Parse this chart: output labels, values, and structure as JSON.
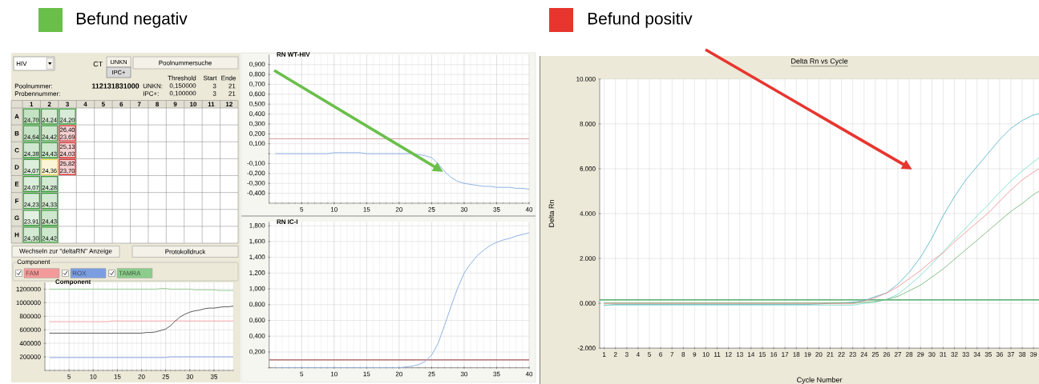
{
  "chart_data": [
    {
      "type": "heatmap",
      "annotations": [
        "HIV",
        "CT",
        "UNKN",
        "IPC+",
        "Poolnummersuche",
        "Threshold",
        "Start",
        "Ende",
        "Poolnummer:",
        "112131831000",
        "Probennummer:",
        "UNKN:",
        "0,150000",
        "3",
        "21",
        "IPC+:",
        "0,100000",
        "3",
        "21",
        "Wechseln zur \"deltaRN\" Anzeige",
        "Protokolldruck"
      ],
      "categories": [
        "1",
        "2",
        "3",
        "4",
        "5",
        "6",
        "7",
        "8",
        "9",
        "10",
        "11",
        "12"
      ],
      "y_categories": [
        "A",
        "B",
        "C",
        "D",
        "E",
        "F",
        "G",
        "H"
      ],
      "cells": [
        [
          24.7,
          24.24,
          24.2,
          null,
          null,
          null,
          null,
          null,
          null,
          null,
          null,
          null
        ],
        [
          24.64,
          24.42,
          null,
          null,
          null,
          null,
          null,
          null,
          null,
          null,
          null,
          null
        ],
        [
          24.38,
          24.43,
          null,
          null,
          null,
          null,
          null,
          null,
          null,
          null,
          null,
          null
        ],
        [
          24.07,
          24.36,
          null,
          null,
          null,
          null,
          null,
          null,
          null,
          null,
          null,
          null
        ],
        [
          24.07,
          24.28,
          null,
          null,
          null,
          null,
          null,
          null,
          null,
          null,
          null,
          null
        ],
        [
          24.23,
          24.33,
          null,
          null,
          null,
          null,
          null,
          null,
          null,
          null,
          null,
          null
        ],
        [
          23.91,
          24.43,
          null,
          null,
          null,
          null,
          null,
          null,
          null,
          null,
          null,
          null
        ],
        [
          24.3,
          24.42,
          null,
          null,
          null,
          null,
          null,
          null,
          null,
          null,
          null,
          null
        ]
      ],
      "cell_labels": [
        [
          "24,70",
          "24,24",
          "24,20",
          null,
          null,
          null,
          null,
          null,
          null,
          null,
          null,
          null
        ],
        [
          "24,64",
          "24,42",
          "26,40 23,69",
          null,
          null,
          null,
          null,
          null,
          null,
          null,
          null,
          null
        ],
        [
          "24,38",
          "24,43",
          "25,13 24,03",
          null,
          null,
          null,
          null,
          null,
          null,
          null,
          null,
          null
        ],
        [
          "24,07",
          "24,36",
          "25,82 23,70",
          null,
          null,
          null,
          null,
          null,
          null,
          null,
          null,
          null
        ],
        [
          "24,07",
          "24,28",
          null,
          null,
          null,
          null,
          null,
          null,
          null,
          null,
          null,
          null
        ],
        [
          "24,23",
          "24,33",
          null,
          null,
          null,
          null,
          null,
          null,
          null,
          null,
          null,
          null
        ],
        [
          "23,91",
          "24,43",
          null,
          null,
          null,
          null,
          null,
          null,
          null,
          null,
          null,
          null
        ],
        [
          "24,30",
          "24,42",
          null,
          null,
          null,
          null,
          null,
          null,
          null,
          null,
          null,
          null
        ]
      ],
      "colors": [
        [
          "#3a9a3a",
          "#3a9a3a",
          "#3a9a3a",
          null,
          null,
          null,
          null,
          null,
          null,
          null,
          null,
          null
        ],
        [
          "#3a9a3a",
          "#3a9a3a",
          "#d83030",
          null,
          null,
          null,
          null,
          null,
          null,
          null,
          null,
          null
        ],
        [
          "#3a9a3a",
          "#3a9a3a",
          "#d83030",
          null,
          null,
          null,
          null,
          null,
          null,
          null,
          null,
          null
        ],
        [
          "#3a9a3a",
          "#e8d850",
          "#d83030",
          null,
          null,
          null,
          null,
          null,
          null,
          null,
          null,
          null
        ],
        [
          "#3a9a3a",
          "#3a9a3a",
          null,
          null,
          null,
          null,
          null,
          null,
          null,
          null,
          null,
          null
        ],
        [
          "#3a9a3a",
          "#3a9a3a",
          null,
          null,
          null,
          null,
          null,
          null,
          null,
          null,
          null,
          null
        ],
        [
          "#3a9a3a",
          "#3a9a3a",
          null,
          null,
          null,
          null,
          null,
          null,
          null,
          null,
          null,
          null
        ],
        [
          "#3a9a3a",
          "#3a9a3a",
          null,
          null,
          null,
          null,
          null,
          null,
          null,
          null,
          null,
          null
        ]
      ]
    },
    {
      "type": "line",
      "title": "Component",
      "legend_title": "Component",
      "x": [
        1,
        2,
        3,
        4,
        5,
        6,
        7,
        8,
        9,
        10,
        11,
        12,
        13,
        14,
        15,
        16,
        17,
        18,
        19,
        20,
        21,
        22,
        23,
        24,
        25,
        26,
        27,
        28,
        29,
        30,
        31,
        32,
        33,
        34,
        35,
        36,
        37,
        38,
        39
      ],
      "series": [
        {
          "name": "FAM",
          "color": "#f29a9a",
          "values": [
            720000,
            720000,
            720000,
            720000,
            720000,
            720000,
            720000,
            720000,
            720000,
            720000,
            720000,
            720000,
            720000,
            730000,
            730000,
            730000,
            730000,
            730000,
            730000,
            730000,
            730000,
            730000,
            730000,
            730000,
            730000,
            730000,
            730000,
            730000,
            730000,
            730000,
            730000,
            730000,
            730000,
            730000,
            730000,
            730000,
            730000,
            730000,
            730000
          ]
        },
        {
          "name": "ROX",
          "color": "#7c9ee0",
          "values": [
            190000,
            190000,
            190000,
            190000,
            190000,
            190000,
            190000,
            190000,
            190000,
            190000,
            190000,
            190000,
            190000,
            190000,
            190000,
            190000,
            190000,
            190000,
            190000,
            190000,
            190000,
            190000,
            190000,
            190000,
            190000,
            200000,
            200000,
            200000,
            200000,
            200000,
            200000,
            200000,
            200000,
            200000,
            200000,
            200000,
            200000,
            200000,
            200000
          ]
        },
        {
          "name": "TAMRA",
          "color": "#8ccc8c",
          "values": [
            1200000,
            1200000,
            1200000,
            1200000,
            1200000,
            1200000,
            1200000,
            1200000,
            1200000,
            1200000,
            1200000,
            1200000,
            1200000,
            1200000,
            1200000,
            1200000,
            1200000,
            1200000,
            1200000,
            1200000,
            1200000,
            1200000,
            1200000,
            1210000,
            1210000,
            1200000,
            1200000,
            1200000,
            1200000,
            1200000,
            1190000,
            1190000,
            1190000,
            1190000,
            1190000,
            1180000,
            1180000,
            1180000,
            1180000
          ]
        },
        {
          "color": "#4a4a4a",
          "values": [
            550000,
            550000,
            550000,
            550000,
            550000,
            550000,
            550000,
            550000,
            550000,
            550000,
            550000,
            550000,
            550000,
            550000,
            550000,
            550000,
            550000,
            550000,
            550000,
            550000,
            560000,
            560000,
            570000,
            590000,
            610000,
            660000,
            730000,
            790000,
            830000,
            860000,
            880000,
            890000,
            910000,
            920000,
            920000,
            930000,
            940000,
            940000,
            950000
          ]
        }
      ],
      "xlim": [
        0,
        39
      ],
      "ylim": [
        0,
        1300000
      ],
      "xticks": [
        5,
        10,
        15,
        20,
        25,
        30,
        35
      ],
      "yticks": [
        200000,
        400000,
        600000,
        800000,
        1000000,
        1200000
      ],
      "grid": true,
      "legend": "top"
    },
    {
      "type": "line",
      "title": "RN WT-HIV",
      "x": [
        1,
        2,
        3,
        4,
        5,
        6,
        7,
        8,
        9,
        10,
        11,
        12,
        13,
        14,
        15,
        16,
        17,
        18,
        19,
        20,
        21,
        22,
        23,
        24,
        25,
        26,
        27,
        28,
        29,
        30,
        31,
        32,
        33,
        34,
        35,
        36,
        37,
        38,
        39,
        40
      ],
      "series": [
        {
          "color": "#8fb2e6",
          "values": [
            0,
            0,
            0,
            0,
            0,
            0,
            0,
            0,
            0,
            0.01,
            0.01,
            0.01,
            0.01,
            0.01,
            0,
            0,
            0,
            0,
            0,
            0,
            0,
            0,
            -0.01,
            -0.02,
            -0.04,
            -0.1,
            -0.18,
            -0.24,
            -0.28,
            -0.3,
            -0.31,
            -0.32,
            -0.33,
            -0.33,
            -0.34,
            -0.34,
            -0.34,
            -0.35,
            -0.35,
            -0.36
          ]
        }
      ],
      "xlim": [
        0,
        40
      ],
      "ylim": [
        -0.5,
        1.0
      ],
      "xticks": [
        5,
        10,
        15,
        20,
        25,
        30,
        35,
        40
      ],
      "yticks": [
        {
          "value": -0.4,
          "label": "-0,400"
        },
        {
          "value": -0.3,
          "label": "-0,300"
        },
        {
          "value": -0.2,
          "label": "-0,200"
        },
        {
          "value": -0.1,
          "label": "-0,100"
        },
        {
          "value": 0,
          "label": null
        },
        {
          "value": 0.1,
          "label": "0,100"
        },
        {
          "value": 0.2,
          "label": "0,200"
        },
        {
          "value": 0.3,
          "label": "0,300"
        },
        {
          "value": 0.4,
          "label": "0,400"
        },
        {
          "value": 0.5,
          "label": "0,500"
        },
        {
          "value": 0.6,
          "label": "0,600"
        },
        {
          "value": 0.7,
          "label": "0,700"
        },
        {
          "value": 0.8,
          "label": "0,800"
        },
        {
          "value": 0.9,
          "label": "0,900"
        }
      ],
      "grid": true,
      "ref_lines": [
        {
          "axis": "y",
          "value": 0.15,
          "color": "#d8a0a0"
        }
      ],
      "annotations": [
        "Befund negativ"
      ]
    },
    {
      "type": "line",
      "title": "RN IC-I",
      "x": [
        1,
        2,
        3,
        4,
        5,
        6,
        7,
        8,
        9,
        10,
        11,
        12,
        13,
        14,
        15,
        16,
        17,
        18,
        19,
        20,
        21,
        22,
        23,
        24,
        25,
        26,
        27,
        28,
        29,
        30,
        31,
        32,
        33,
        34,
        35,
        36,
        37,
        38,
        39,
        40
      ],
      "series": [
        {
          "color": "#8fb2e6",
          "values": [
            0,
            0,
            0,
            0,
            0,
            0,
            0,
            0,
            0,
            0,
            0,
            0,
            0,
            0,
            0,
            0,
            0,
            0,
            0,
            0,
            0.01,
            0.02,
            0.04,
            0.08,
            0.16,
            0.31,
            0.54,
            0.78,
            1.01,
            1.2,
            1.32,
            1.42,
            1.49,
            1.55,
            1.59,
            1.62,
            1.64,
            1.67,
            1.69,
            1.71
          ]
        }
      ],
      "xlim": [
        0,
        40
      ],
      "ylim": [
        0,
        1.85
      ],
      "xticks": [
        5,
        10,
        15,
        20,
        25,
        30,
        35,
        40
      ],
      "yticks": [
        {
          "value": 0,
          "label": null
        },
        {
          "value": 0.2,
          "label": "0,200"
        },
        {
          "value": 0.4,
          "label": "0,400"
        },
        {
          "value": 0.6,
          "label": "0,600"
        },
        {
          "value": 0.8,
          "label": "0,800"
        },
        {
          "value": 1.0,
          "label": "1,000"
        },
        {
          "value": 1.2,
          "label": "1,200"
        },
        {
          "value": 1.4,
          "label": "1,400"
        },
        {
          "value": 1.6,
          "label": "1,600"
        },
        {
          "value": 1.8,
          "label": "1,800"
        }
      ],
      "grid": true,
      "ref_lines": [
        {
          "axis": "y",
          "value": 0.1,
          "color": "#a05050"
        }
      ]
    },
    {
      "type": "line",
      "title": "Delta Rn vs Cycle",
      "xlabel": "Cycle Number",
      "ylabel": "Delta Rn",
      "x": [
        1,
        2,
        3,
        4,
        5,
        6,
        7,
        8,
        9,
        10,
        11,
        12,
        13,
        14,
        15,
        16,
        17,
        18,
        19,
        20,
        21,
        22,
        23,
        24,
        25,
        26,
        27,
        28,
        29,
        30,
        31,
        32,
        33,
        34,
        35,
        36,
        37,
        38,
        39,
        39.5
      ],
      "series": [
        {
          "color": "#4aaec6",
          "values": [
            -100,
            -50,
            -50,
            -50,
            -50,
            -50,
            -50,
            -50,
            -50,
            -50,
            -50,
            -50,
            -50,
            -50,
            -50,
            -50,
            -50,
            -50,
            -50,
            -30,
            0,
            20,
            50,
            120,
            300,
            460,
            860,
            1390,
            2050,
            2900,
            3900,
            4750,
            5500,
            6100,
            6700,
            7300,
            7800,
            8150,
            8400,
            8450
          ]
        },
        {
          "color": "#6fdcc4",
          "values": [
            -80,
            -80,
            -80,
            -80,
            -80,
            -80,
            -80,
            -80,
            -80,
            -80,
            -80,
            -80,
            -80,
            -80,
            -80,
            -80,
            -80,
            -80,
            -80,
            -80,
            -80,
            -80,
            -80,
            0,
            50,
            170,
            400,
            800,
            1250,
            1750,
            2300,
            2850,
            3350,
            3900,
            4400,
            4950,
            5450,
            5900,
            6300,
            6500
          ]
        },
        {
          "color": "#e88a8a",
          "values": [
            -20,
            -20,
            -20,
            -20,
            -20,
            -20,
            -20,
            -20,
            -20,
            -20,
            -20,
            -20,
            -20,
            -20,
            -20,
            -20,
            -20,
            -20,
            -20,
            -20,
            -20,
            -20,
            -20,
            100,
            250,
            460,
            740,
            1100,
            1460,
            1890,
            2240,
            2740,
            3170,
            3600,
            4030,
            4550,
            5050,
            5500,
            5850,
            6000
          ]
        },
        {
          "color": "#6cae6c",
          "values": [
            20,
            20,
            20,
            20,
            20,
            20,
            20,
            20,
            20,
            20,
            20,
            20,
            20,
            20,
            20,
            20,
            20,
            20,
            20,
            20,
            20,
            20,
            20,
            50,
            80,
            170,
            310,
            560,
            810,
            1170,
            1530,
            1960,
            2390,
            2810,
            3240,
            3670,
            4100,
            4450,
            4850,
            5000
          ]
        }
      ],
      "xlim": [
        0.6,
        39.5
      ],
      "ylim": [
        -2000,
        10000
      ],
      "xticks": [
        1,
        2,
        3,
        4,
        5,
        6,
        7,
        8,
        9,
        10,
        11,
        12,
        13,
        14,
        15,
        16,
        17,
        18,
        19,
        20,
        21,
        22,
        23,
        24,
        25,
        26,
        27,
        28,
        29,
        30,
        31,
        32,
        33,
        34,
        35,
        36,
        37,
        38,
        39
      ],
      "yticks": [
        {
          "value": -2000,
          "label": "-2.000"
        },
        {
          "value": 0,
          "label": "0.000"
        },
        {
          "value": 2000,
          "label": "2.000"
        },
        {
          "value": 4000,
          "label": "4.000"
        },
        {
          "value": 6000,
          "label": "6.000"
        },
        {
          "value": 8000,
          "label": "8.000"
        },
        {
          "value": 10000,
          "label": "10.000"
        }
      ],
      "grid": true,
      "ref_lines": [
        {
          "axis": "y",
          "value": 150,
          "color": "#2e9a50"
        }
      ],
      "annotations": [
        "Befund positiv"
      ]
    }
  ]
}
